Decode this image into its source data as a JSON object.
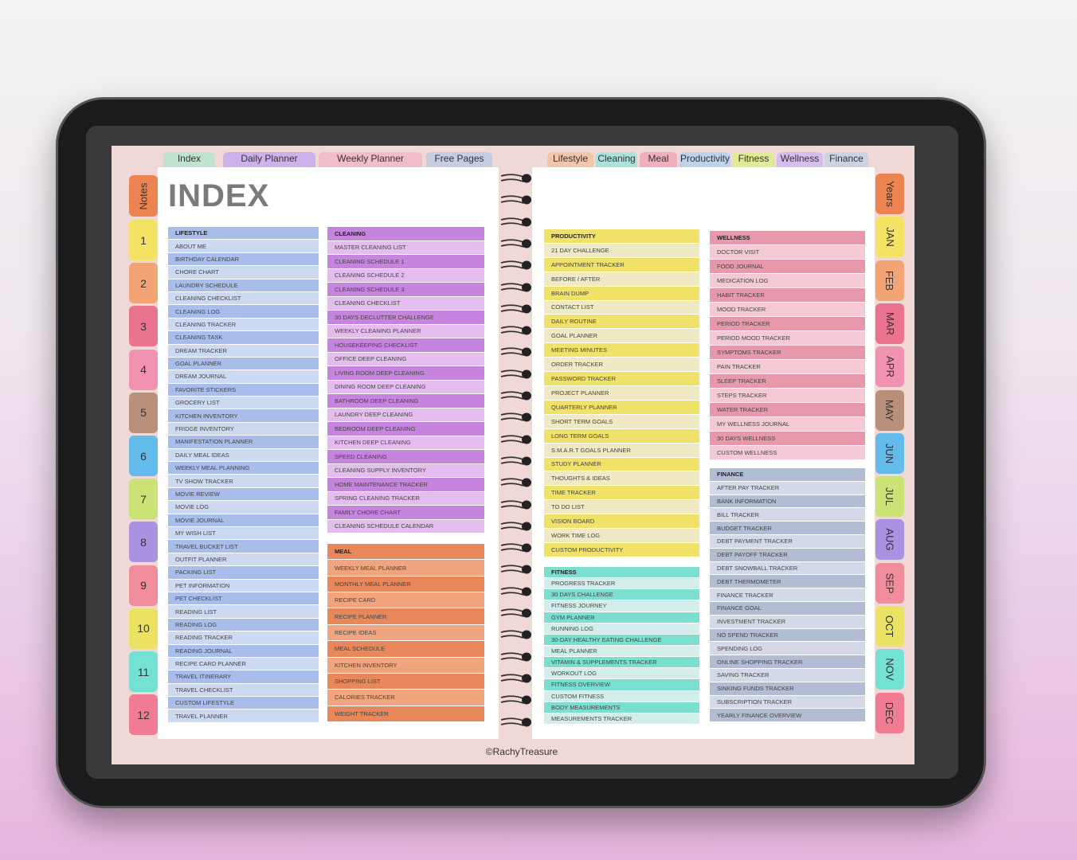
{
  "top_tabs_left": [
    {
      "label": "Index",
      "color": "#bfe3cf"
    },
    {
      "label": "Daily Planner",
      "color": "#cdb1ea"
    },
    {
      "label": "Weekly Planner",
      "color": "#f2bccb"
    },
    {
      "label": "Free Pages",
      "color": "#c6cde2"
    }
  ],
  "top_tabs_right": [
    {
      "label": "Lifestyle",
      "color": "#f2c6a8"
    },
    {
      "label": "Cleaning",
      "color": "#abe2d9"
    },
    {
      "label": "Meal",
      "color": "#f3aebd"
    },
    {
      "label": "Productivity",
      "color": "#bcd3ea"
    },
    {
      "label": "Fitness",
      "color": "#e2ea93"
    },
    {
      "label": "Wellness",
      "color": "#d4bdf1"
    },
    {
      "label": "Finance",
      "color": "#cbd2e2"
    }
  ],
  "left_tabs": [
    {
      "label": "Notes",
      "color": "#ec8452"
    },
    {
      "label": "1",
      "color": "#f2e364"
    },
    {
      "label": "2",
      "color": "#f2a474"
    },
    {
      "label": "3",
      "color": "#ea7490"
    },
    {
      "label": "4",
      "color": "#f092b0"
    },
    {
      "label": "5",
      "color": "#b9907a"
    },
    {
      "label": "6",
      "color": "#62bbea"
    },
    {
      "label": "7",
      "color": "#cbe274"
    },
    {
      "label": "8",
      "color": "#a992e2"
    },
    {
      "label": "9",
      "color": "#f08c9c"
    },
    {
      "label": "10",
      "color": "#ebe264"
    },
    {
      "label": "11",
      "color": "#74e2d2"
    },
    {
      "label": "12",
      "color": "#f07c94"
    }
  ],
  "right_tabs": [
    {
      "label": "Years",
      "color": "#ec8452"
    },
    {
      "label": "JAN",
      "color": "#f2e364"
    },
    {
      "label": "FEB",
      "color": "#f2a474"
    },
    {
      "label": "MAR",
      "color": "#ea7490"
    },
    {
      "label": "APR",
      "color": "#f092b0"
    },
    {
      "label": "MAY",
      "color": "#b9907a"
    },
    {
      "label": "JUN",
      "color": "#62bbea"
    },
    {
      "label": "JUL",
      "color": "#cbe274"
    },
    {
      "label": "AUG",
      "color": "#a992e2"
    },
    {
      "label": "SEP",
      "color": "#f08c9c"
    },
    {
      "label": "OCT",
      "color": "#ebe264"
    },
    {
      "label": "NOV",
      "color": "#74e2d2"
    },
    {
      "label": "DEC",
      "color": "#f07c94"
    }
  ],
  "title": "INDEX",
  "footer": "©RachyTreasure",
  "sections": [
    {
      "title": "LIFESTYLE",
      "dark": "#a9bdeb",
      "light": "#cdd9f1",
      "items": [
        "About Me",
        "Birthday Calendar",
        "Chore Chart",
        "Laundry Schedule",
        "Cleaning Checklist",
        "Cleaning Log",
        "Cleaning Tracker",
        "Cleaning Task",
        "Dream Tracker",
        "Goal Planner",
        "Dream Journal",
        "Favorite Stickers",
        "Grocery List",
        "Kitchen Inventory",
        "Fridge Inventory",
        "Manifestation Planner",
        "Daily Meal Ideas",
        "Weekly Meal Planning",
        "TV Show Tracker",
        "Movie Review",
        "Movie Log",
        "Movie Journal",
        "My Wish List",
        "Travel Bucket List",
        "Outfit Planner",
        "Packing List",
        "Pet Information",
        "Pet Checklist",
        "Reading List",
        "Reading Log",
        "Reading Tracker",
        "Reading Journal",
        "Recipe Card Planner",
        "Travel Itinerary",
        "Travel Checklist",
        "Custom Lifestyle",
        "Travel Planner"
      ]
    },
    {
      "title": "CLEANING",
      "dark": "#c784df",
      "light": "#e4bdee",
      "items": [
        "Master Cleaning List",
        "Cleaning Schedule 1",
        "Cleaning Schedule 2",
        "Cleaning Schedule 3",
        "Cleaning Checklist",
        "30 Days Declutter Challenge",
        "Weekly Cleaning Planner",
        "Housekeeping Checklist",
        "Office Deep Cleaning",
        "Living Room Deep Cleaning",
        "Dining Room Deep Cleaning",
        "Bathroom Deep Cleaning",
        "Laundry Deep Cleaning",
        "Bedroom Deep Cleaning",
        "Kitchen Deep Cleaning",
        "Speed Cleaning",
        "Cleaning Supply Inventory",
        "Home Maintenance Tracker",
        "Spring Cleaning Tracker",
        "Family Chore Chart",
        "Cleaning Schedule Calendar"
      ]
    },
    {
      "title": "MEAL",
      "dark": "#e8875a",
      "light": "#f0a57e",
      "items": [
        "Weekly Meal Planner",
        "Monthly Meal Planner",
        "Recipe Card",
        "Recipe Planner",
        "Recipe Ideas",
        "Meal Schedule",
        "Kitchen Inventory",
        "Shopping List",
        "Calories Tracker",
        "Weight Tracker"
      ]
    },
    {
      "title": "PRODUCTIVITY",
      "dark": "#f0e168",
      "light": "#efe9c4",
      "items": [
        "21 Day Challenge",
        "Appointment Tracker",
        "Before / After",
        "Brain Dump",
        "Contact List",
        "Daily Routine",
        "Goal Planner",
        "Meeting Minutes",
        "Order Tracker",
        "Password Tracker",
        "Project Planner",
        "Quarterly Planner",
        "Short Term Goals",
        "Long Term Goals",
        "S.M.A.R.T Goals Planner",
        "Study Planner",
        "Thoughts & Ideas",
        "Time Tracker",
        "To Do List",
        "Vision Board",
        "Work Time Log",
        "Custom Productivity"
      ]
    },
    {
      "title": "FITNESS",
      "dark": "#7adfce",
      "light": "#d3eeea",
      "items": [
        "Progress Tracker",
        "30 Days Challenge",
        "Fitness Journey",
        "Gym Planner",
        "Running Log",
        "30-Day Healthy Eating Challenge",
        "Meal Planner",
        "Vitamin & Supplements Tracker",
        "Workout Log",
        "Fitness Overview",
        "Custom Fitness",
        "Body Measurements",
        "Measurements Tracker"
      ]
    },
    {
      "title": "WELLNESS",
      "dark": "#e898ab",
      "light": "#f2c9d4",
      "items": [
        "Doctor Visit",
        "Food Journal",
        "Medication Log",
        "Habit Tracker",
        "Mood Tracker",
        "Period Tracker",
        "Period Mood Tracker",
        "Symptoms Tracker",
        "Pain Tracker",
        "Sleep Tracker",
        "Steps Tracker",
        "Water Tracker",
        "My Wellness Journal",
        "30 Days Wellness",
        "Custom Wellness"
      ]
    },
    {
      "title": "FINANCE",
      "dark": "#b2bcd2",
      "light": "#d3d9e7",
      "items": [
        "After Pay Tracker",
        "Bank Information",
        "Bill Tracker",
        "Budget Tracker",
        "Debt Payment Tracker",
        "Debt Payoff Tracker",
        "Debt Snowball Tracker",
        "Debt Thermometer",
        "Finance Tracker",
        "Finance Goal",
        "Investment Tracker",
        "No Spend Tracker",
        "Spending Log",
        "Online Shopping Tracker",
        "Saving Tracker",
        "Sinking Funds Tracker",
        "Subscription Tracker",
        "Yearly Finance Overview"
      ]
    }
  ]
}
